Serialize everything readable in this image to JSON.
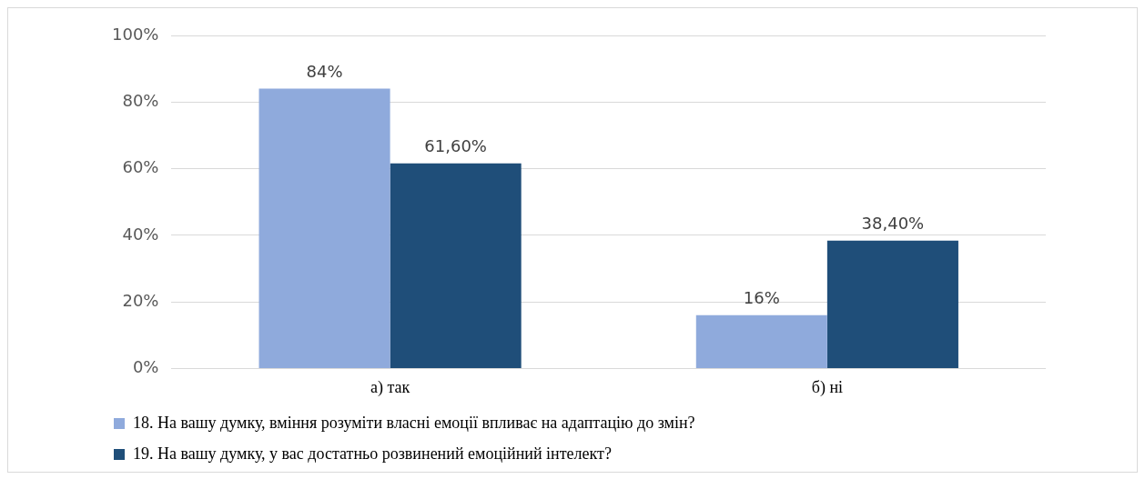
{
  "chart_data": {
    "type": "bar",
    "categories": [
      "а) так",
      "б) ні"
    ],
    "series": [
      {
        "name": "18. На вашу думку, вміння розуміти власні емоції впливає на адаптацію до змін?",
        "color": "#8faadc",
        "values": [
          84,
          16
        ],
        "value_labels": [
          "84%",
          "16%"
        ]
      },
      {
        "name": "19. На вашу думку, у вас достатньо розвинений емоційний інтелект?",
        "color": "#1f4e79",
        "values": [
          61.6,
          38.4
        ],
        "value_labels": [
          "61,60%",
          "38,40%"
        ]
      }
    ],
    "ylim": [
      0,
      100
    ],
    "yticks": [
      {
        "value": 0,
        "label": "0%"
      },
      {
        "value": 20,
        "label": "20%"
      },
      {
        "value": 40,
        "label": "40%"
      },
      {
        "value": 60,
        "label": "60%"
      },
      {
        "value": 80,
        "label": "80%"
      },
      {
        "value": 100,
        "label": "100%"
      }
    ],
    "grid": "y",
    "legend": "bottom"
  }
}
